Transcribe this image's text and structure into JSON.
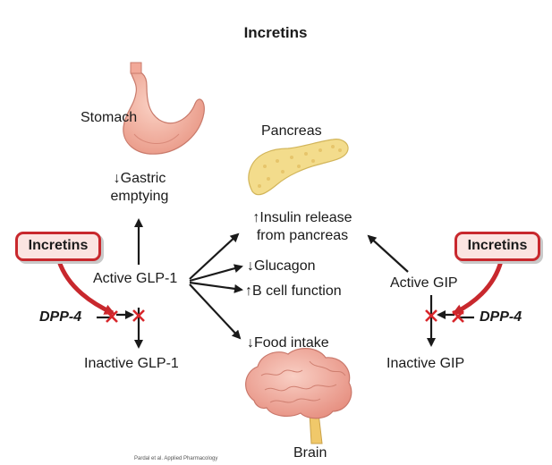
{
  "title": "Incretins",
  "organs": {
    "stomach": "Stomach",
    "pancreas": "Pancreas",
    "brain": "Brain"
  },
  "effects": {
    "gastric_line1": "↓Gastric",
    "gastric_line2": "emptying",
    "insulin_line1": "↑Insulin release",
    "insulin_line2": "from pancreas",
    "glucagon": "↓Glucagon",
    "bcell": "↑B cell function",
    "food": "↓Food intake"
  },
  "glp1": {
    "active": "Active GLP-1",
    "inactive": "Inactive GLP-1"
  },
  "gip": {
    "active": "Active GIP",
    "inactive": "Inactive GIP"
  },
  "incretin_box_left": "Incretins",
  "incretin_box_right": "Incretins",
  "dpp4_left": "DPP-4",
  "dpp4_right": "DPP-4",
  "credit": "Pardal et al. Applied Pharmacology",
  "colors": {
    "red": "#c8282d",
    "box_fill": "#fbe4e1",
    "stomach": "#f2a999",
    "pancreas": "#f3dc8c",
    "brain": "#f1a99b",
    "text": "#1a1a1a"
  }
}
